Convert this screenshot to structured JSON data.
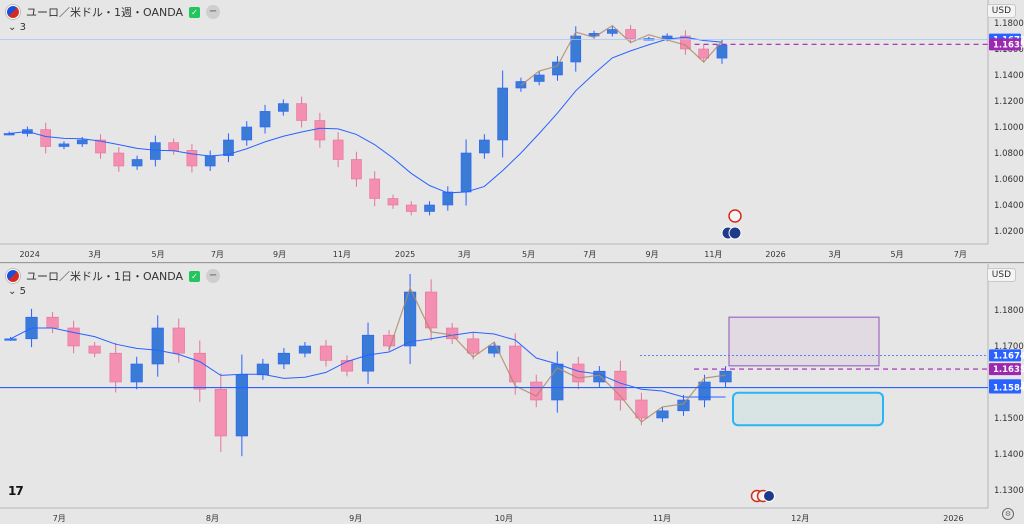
{
  "top": {
    "title": "ユーロ／米ドル・1週・OANDA",
    "sublegend_value": "3",
    "currency_button": "USD",
    "price_labels": [
      {
        "value": "1.18000",
        "price": 1.18
      },
      {
        "value": "1.16000",
        "price": 1.16
      },
      {
        "value": "1.14000",
        "price": 1.14
      },
      {
        "value": "1.12000",
        "price": 1.12
      },
      {
        "value": "1.10000",
        "price": 1.1
      },
      {
        "value": "1.08000",
        "price": 1.08
      },
      {
        "value": "1.06000",
        "price": 1.06
      },
      {
        "value": "1.04000",
        "price": 1.04
      },
      {
        "value": "1.02000",
        "price": 1.02
      }
    ],
    "badges": [
      {
        "value": "1.16722",
        "price": 1.16722,
        "color": "#2962ff"
      },
      {
        "value": "1.16359",
        "price": 1.16359,
        "color": "#9c27b0"
      }
    ],
    "time_labels": [
      {
        "label": "2024",
        "frac": 0.03
      },
      {
        "label": "3月",
        "frac": 0.096
      },
      {
        "label": "5月",
        "frac": 0.16
      },
      {
        "label": "7月",
        "frac": 0.22
      },
      {
        "label": "9月",
        "frac": 0.283
      },
      {
        "label": "11月",
        "frac": 0.346
      },
      {
        "label": "2025",
        "frac": 0.41
      },
      {
        "label": "3月",
        "frac": 0.47
      },
      {
        "label": "5月",
        "frac": 0.535
      },
      {
        "label": "7月",
        "frac": 0.597
      },
      {
        "label": "9月",
        "frac": 0.66
      },
      {
        "label": "11月",
        "frac": 0.722
      },
      {
        "label": "2026",
        "frac": 0.785
      },
      {
        "label": "3月",
        "frac": 0.845
      },
      {
        "label": "5月",
        "frac": 0.908
      },
      {
        "label": "7月",
        "frac": 0.972
      }
    ],
    "price_range": [
      1.01,
      1.19
    ]
  },
  "bottom": {
    "title": "ユーロ／米ドル・1日・OANDA",
    "sublegend_value": "5",
    "currency_button": "USD",
    "price_labels": [
      {
        "value": "1.18000",
        "price": 1.18
      },
      {
        "value": "1.17000",
        "price": 1.17
      },
      {
        "value": "1.15000",
        "price": 1.15
      },
      {
        "value": "1.14000",
        "price": 1.14
      },
      {
        "value": "1.13000",
        "price": 1.13
      }
    ],
    "badges": [
      {
        "value": "1.16740",
        "price": 1.1674,
        "color": "#2962ff"
      },
      {
        "value": "1.16359",
        "price": 1.16359,
        "color": "#9c27b0"
      },
      {
        "value": "1.15910",
        "price": 1.1591,
        "color": "#2962ff"
      },
      {
        "value": "1.15846",
        "price": 1.15846,
        "color": "#2962ff"
      }
    ],
    "time_labels": [
      {
        "label": "7月",
        "frac": 0.06
      },
      {
        "label": "8月",
        "frac": 0.215
      },
      {
        "label": "9月",
        "frac": 0.36
      },
      {
        "label": "10月",
        "frac": 0.51
      },
      {
        "label": "11月",
        "frac": 0.67
      },
      {
        "label": "12月",
        "frac": 0.81
      },
      {
        "label": "2026",
        "frac": 0.965
      }
    ],
    "price_range": [
      1.125,
      1.19
    ]
  },
  "logo_text": "17",
  "chart_data": [
    {
      "type": "candlestick",
      "title": "ユーロ／米ドル・1週・OANDA",
      "ylim": [
        1.01,
        1.19
      ],
      "ma_period": "3",
      "x": [
        "2024",
        "3月",
        "5月",
        "7月",
        "9月",
        "11月",
        "2025",
        "3月",
        "5月",
        "7月",
        "9月",
        "11月",
        "2026",
        "3月",
        "5月",
        "7月"
      ],
      "close_path": [
        1.095,
        1.098,
        1.085,
        1.087,
        1.09,
        1.08,
        1.07,
        1.075,
        1.088,
        1.082,
        1.07,
        1.078,
        1.09,
        1.1,
        1.112,
        1.118,
        1.105,
        1.09,
        1.075,
        1.06,
        1.045,
        1.04,
        1.035,
        1.04,
        1.05,
        1.08,
        1.09,
        1.13,
        1.135,
        1.14,
        1.15,
        1.17,
        1.172,
        1.175,
        1.168,
        1.168,
        1.17,
        1.16,
        1.153,
        1.163
      ],
      "current": {
        "weekly_ma": 1.16722,
        "last_price": 1.16359
      }
    },
    {
      "type": "candlestick",
      "title": "ユーロ／米ドル・1日・OANDA",
      "ylim": [
        1.125,
        1.19
      ],
      "ma_period": "5",
      "x": [
        "7月",
        "8月",
        "9月",
        "10月",
        "11月",
        "12月",
        "2026"
      ],
      "close_path": [
        1.172,
        1.178,
        1.175,
        1.17,
        1.168,
        1.16,
        1.165,
        1.175,
        1.168,
        1.158,
        1.145,
        1.162,
        1.165,
        1.168,
        1.17,
        1.166,
        1.163,
        1.173,
        1.17,
        1.185,
        1.175,
        1.172,
        1.168,
        1.17,
        1.16,
        1.155,
        1.165,
        1.16,
        1.163,
        1.155,
        1.15,
        1.152,
        1.155,
        1.16,
        1.163
      ],
      "current": {
        "ma": 1.1674,
        "last_price": 1.16359,
        "support": 1.15846,
        "ma2": 1.1591
      }
    }
  ]
}
